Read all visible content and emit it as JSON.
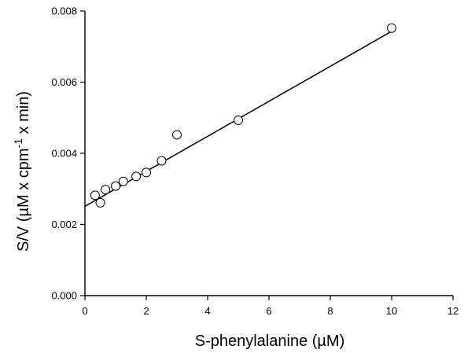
{
  "chart_data": {
    "type": "scatter",
    "title": "",
    "xlabel": "S-phenylalanine (µM)",
    "ylabel_main": "S/V (µM x cpm",
    "ylabel_sup": "-1",
    "ylabel_tail": " x min)",
    "xlim": [
      0,
      12
    ],
    "ylim": [
      0,
      0.008
    ],
    "x_ticks": [
      0,
      2,
      4,
      6,
      8,
      10,
      12
    ],
    "x_tick_labels": [
      "0",
      "2",
      "4",
      "6",
      "8",
      "10",
      "12"
    ],
    "y_ticks": [
      0,
      0.002,
      0.004,
      0.006,
      0.008
    ],
    "y_tick_labels": [
      "0.000",
      "0.002",
      "0.004",
      "0.006",
      "0.008"
    ],
    "grid": false,
    "points": [
      {
        "x": 0.33,
        "y": 0.00282
      },
      {
        "x": 0.5,
        "y": 0.00261
      },
      {
        "x": 0.67,
        "y": 0.00298
      },
      {
        "x": 1.0,
        "y": 0.00308
      },
      {
        "x": 1.25,
        "y": 0.00321
      },
      {
        "x": 1.67,
        "y": 0.00335
      },
      {
        "x": 2.0,
        "y": 0.00346
      },
      {
        "x": 2.5,
        "y": 0.00379
      },
      {
        "x": 3.0,
        "y": 0.00452
      },
      {
        "x": 5.0,
        "y": 0.00493
      },
      {
        "x": 10.0,
        "y": 0.00752
      }
    ],
    "fit_line": {
      "x": [
        0,
        10
      ],
      "y": [
        0.00251,
        0.00743
      ]
    }
  }
}
